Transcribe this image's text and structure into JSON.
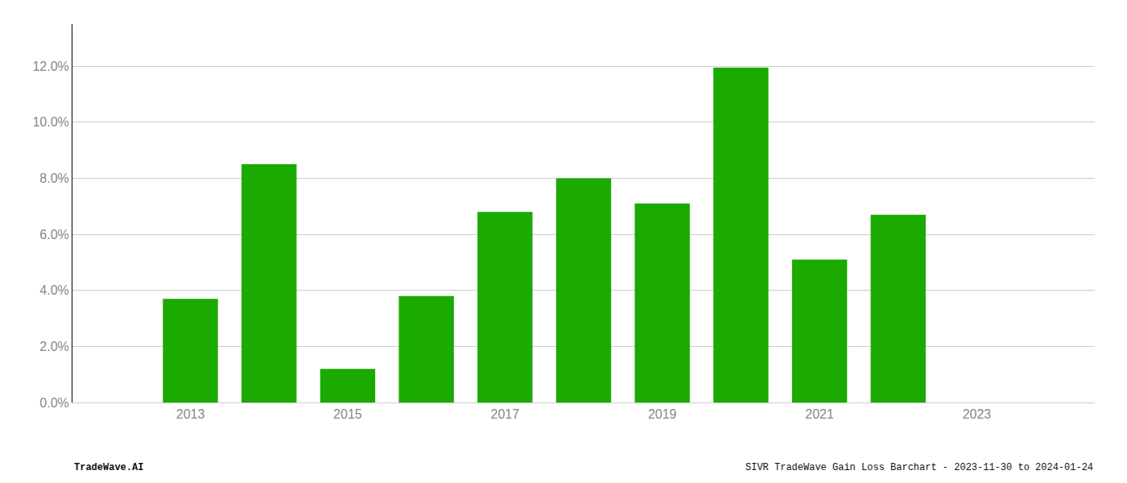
{
  "chart_data": {
    "type": "bar",
    "x": [
      2013,
      2014,
      2015,
      2016,
      2017,
      2018,
      2019,
      2020,
      2021,
      2022
    ],
    "values": [
      0.037,
      0.085,
      0.012,
      0.038,
      0.068,
      0.08,
      0.071,
      0.1195,
      0.051,
      0.067
    ],
    "color": "#1aaa00",
    "xlim": [
      2011.5,
      2024.5
    ],
    "xticks": [
      2013,
      2015,
      2017,
      2019,
      2021,
      2023
    ],
    "ylim": [
      0,
      0.135
    ],
    "yticks": [
      {
        "value": 0.0,
        "label": "0.0%"
      },
      {
        "value": 0.02,
        "label": "2.0%"
      },
      {
        "value": 0.04,
        "label": "4.0%"
      },
      {
        "value": 0.06,
        "label": "6.0%"
      },
      {
        "value": 0.08,
        "label": "8.0%"
      },
      {
        "value": 0.1,
        "label": "10.0%"
      },
      {
        "value": 0.12,
        "label": "12.0%"
      }
    ],
    "grid": true,
    "annotations": [
      "TradeWave.AI",
      "SIVR TradeWave Gain Loss Barchart - 2023-11-30 to 2024-01-24"
    ]
  }
}
